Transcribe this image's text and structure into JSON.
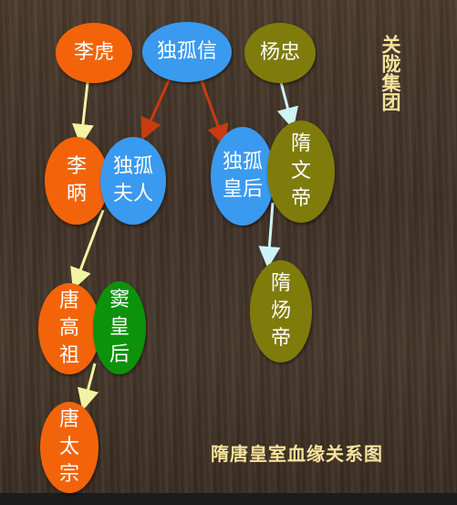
{
  "colors": {
    "orange": "#f3640a",
    "blue": "#3a9af0",
    "olive": "#807c0c",
    "green": "#0d920c",
    "arrow_yellow": "#f2f3a4",
    "arrow_cyan": "#cdf3f6",
    "arrow_red": "#c83a12",
    "caption_gold": "#f6e39a"
  },
  "group_label": "关陇集团",
  "caption": "隋唐皇室血缘关系图",
  "nodes": {
    "li_hu": "李虎",
    "dugu_xin": "独孤信",
    "yang_zhong": "杨忠",
    "li_bing": "李\n昞",
    "dugu_furen": "独孤\n夫人",
    "dugu_huanghou": "独孤\n皇后",
    "sui_wendi": "隋\n文\n帝",
    "tang_gaozu": "唐\n高\n祖",
    "dou_huanghou": "窦\n皇\n后",
    "sui_yangdi": "隋\n炀\n帝",
    "tang_taizong": "唐\n太\n宗"
  }
}
